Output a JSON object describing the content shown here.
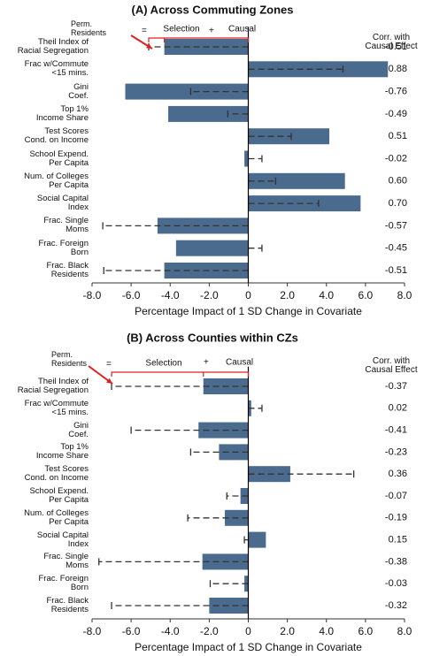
{
  "chart_data": [
    {
      "type": "bar",
      "title": "(A)  Across Commuting Zones",
      "x_label": "Percentage Impact of 1 SD Change in Covariate",
      "categories": [
        "Theil Index of\nRacial Segregation",
        "Frac w/Commute\n<15 mins.",
        "Gini\nCoef.",
        "Top 1%\nIncome Share",
        "Test Scores\nCond. on Income",
        "School Expend.\nPer Capita",
        "Num. of Colleges\nPer Capita",
        "Social Capital\nIndex",
        "Frac. Single\nMoms",
        "Frac. Foreign\nBorn",
        "Frac. Black\nResidents"
      ],
      "series": [
        {
          "name": "Causal",
          "color": "#4a6b8e",
          "values": [
            -4.3,
            7.15,
            -6.3,
            -4.1,
            4.15,
            -0.2,
            4.95,
            5.75,
            -4.65,
            -3.7,
            -4.3
          ]
        },
        {
          "name": "Perm.\nResidents",
          "color": "#333333",
          "values": [
            -5.1,
            4.85,
            -2.95,
            -1.05,
            2.2,
            0.7,
            1.4,
            3.6,
            -7.45,
            0.7,
            -7.4
          ]
        }
      ],
      "legend_selection": "Selection",
      "legend_equals": "=",
      "legend_plus": "+",
      "corr": {
        "title": "Corr. with\nCausal Effect",
        "values": [
          -0.51,
          0.88,
          -0.76,
          -0.49,
          0.51,
          -0.02,
          0.6,
          0.7,
          -0.57,
          -0.45,
          -0.51
        ],
        "value_labels": [
          "-0.51",
          "0.88",
          "-0.76",
          "-0.49",
          "0.51",
          "-0.02",
          "0.60",
          "0.70",
          "-0.57",
          "-0.45",
          "-0.51"
        ]
      },
      "xlim": [
        -8,
        8
      ],
      "xticks": [
        {
          "value": -8,
          "label": "-8.0"
        },
        {
          "value": -6,
          "label": "-6.0"
        },
        {
          "value": -4,
          "label": "-4.0"
        },
        {
          "value": -2,
          "label": "-2.0"
        },
        0,
        {
          "value": 2,
          "label": "2.0"
        },
        {
          "value": 4,
          "label": "4.0"
        },
        {
          "value": 6,
          "label": "6.0"
        },
        {
          "value": 8,
          "label": "8.0"
        }
      ]
    },
    {
      "type": "bar",
      "title": "(B)  Across Counties within CZs",
      "x_label": "Percentage Impact of 1 SD Change in Covariate",
      "categories": [
        "Theil Index of\nRacial Segregation",
        "Frac w/Commute\n<15 mins.",
        "Gini\nCoef.",
        "Top 1%\nIncome Share",
        "Test Scores\nCond. on Income",
        "School Expend.\nPer Capita",
        "Num. of Colleges\nPer Capita",
        "Social Capital\nIndex",
        "Frac. Single\nMoms",
        "Frac. Foreign\nBorn",
        "Frac. Black\nResidents"
      ],
      "series": [
        {
          "name": "Causal",
          "color": "#4a6b8e",
          "values": [
            -2.3,
            0.15,
            -2.55,
            -1.5,
            2.15,
            -0.4,
            -1.2,
            0.9,
            -2.35,
            -0.2,
            -2.0
          ]
        },
        {
          "name": "Perm.\nResidents",
          "color": "#333333",
          "values": [
            -7.0,
            0.7,
            -6.0,
            -2.95,
            5.4,
            -1.1,
            -3.1,
            -0.2,
            -7.65,
            -1.95,
            -7.0
          ]
        }
      ],
      "legend_selection": "Selection",
      "legend_equals": "=",
      "legend_plus": "+",
      "corr": {
        "title": "Corr. with\nCausal Effect",
        "values": [
          -0.37,
          0.02,
          -0.41,
          -0.23,
          0.36,
          -0.07,
          -0.19,
          0.15,
          -0.38,
          -0.03,
          -0.32
        ],
        "value_labels": [
          "-0.37",
          "0.02",
          "-0.41",
          "-0.23",
          "0.36",
          "-0.07",
          "-0.19",
          "0.15",
          "-0.38",
          "-0.03",
          "-0.32"
        ]
      },
      "xlim": [
        -8,
        8
      ],
      "xticks": [
        {
          "value": -8,
          "label": "-8.0"
        },
        {
          "value": -6,
          "label": "-6.0"
        },
        {
          "value": -4,
          "label": "-4.0"
        },
        {
          "value": -2,
          "label": "-2.0"
        },
        0,
        {
          "value": 2,
          "label": "2.0"
        },
        {
          "value": 4,
          "label": "4.0"
        },
        {
          "value": 6,
          "label": "6.0"
        },
        {
          "value": 8,
          "label": "8.0"
        }
      ]
    }
  ]
}
